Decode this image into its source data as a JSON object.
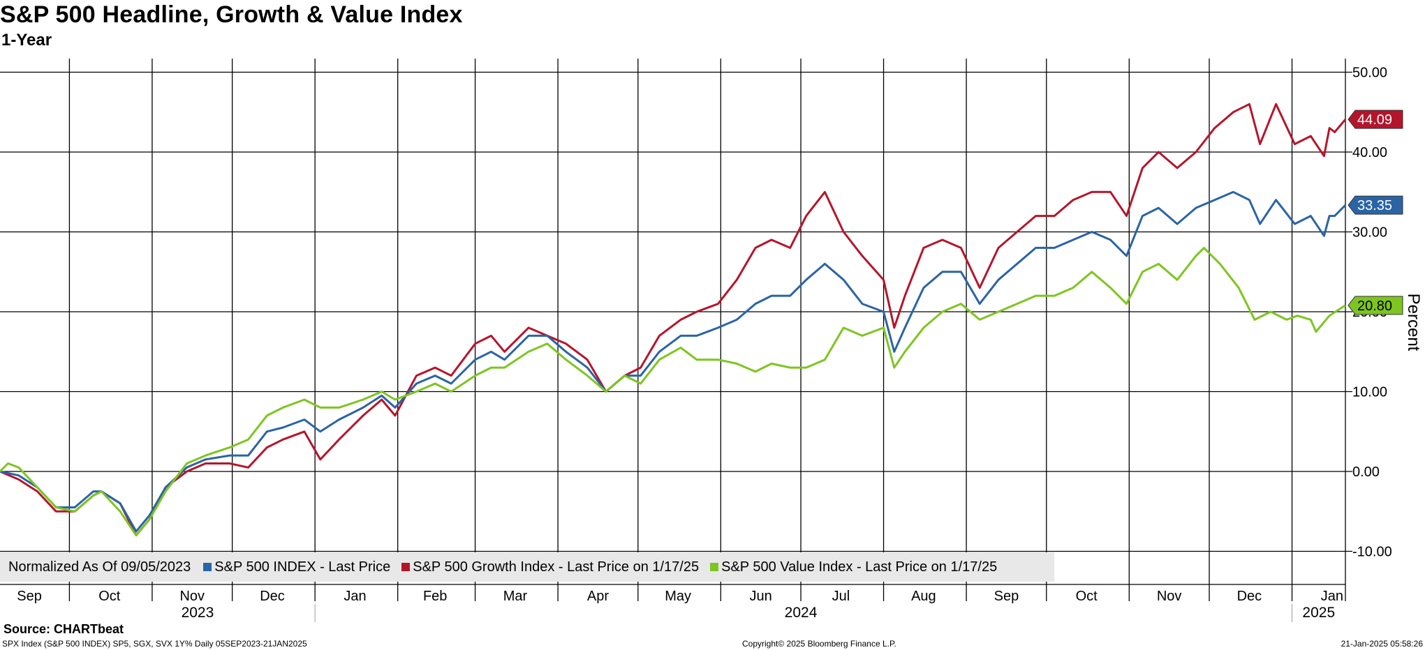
{
  "title": "S&P 500 Headline, Growth & Value Index",
  "subtitle": "1-Year",
  "chart_data": {
    "type": "line",
    "ylabel": "Percent",
    "ylim": [
      -14,
      52
    ],
    "y_ticks": [
      -10,
      0,
      10,
      20,
      30,
      40,
      50
    ],
    "y_tick_labels": [
      "-10.00",
      "0.00",
      "10.00",
      "20.00",
      "30.00",
      "40.00",
      "50.00"
    ],
    "x_range": [
      "2023-09-05",
      "2025-01-21"
    ],
    "month_labels": [
      {
        "label": "Sep",
        "date": "2023-09-16"
      },
      {
        "label": "Oct",
        "date": "2023-10-16"
      },
      {
        "label": "Nov",
        "date": "2023-11-16"
      },
      {
        "label": "Dec",
        "date": "2023-12-16"
      },
      {
        "label": "Jan",
        "date": "2024-01-16"
      },
      {
        "label": "Feb",
        "date": "2024-02-15"
      },
      {
        "label": "Mar",
        "date": "2024-03-16"
      },
      {
        "label": "Apr",
        "date": "2024-04-16"
      },
      {
        "label": "May",
        "date": "2024-05-16"
      },
      {
        "label": "Jun",
        "date": "2024-06-16"
      },
      {
        "label": "Jul",
        "date": "2024-07-16"
      },
      {
        "label": "Aug",
        "date": "2024-08-16"
      },
      {
        "label": "Sep",
        "date": "2024-09-16"
      },
      {
        "label": "Oct",
        "date": "2024-10-16"
      },
      {
        "label": "Nov",
        "date": "2024-11-16"
      },
      {
        "label": "Dec",
        "date": "2024-12-16"
      },
      {
        "label": "Jan",
        "date": "2025-01-16"
      }
    ],
    "month_gridlines": [
      "2023-10-01",
      "2023-11-01",
      "2023-12-01",
      "2024-01-01",
      "2024-02-01",
      "2024-03-01",
      "2024-04-01",
      "2024-05-01",
      "2024-06-01",
      "2024-07-01",
      "2024-08-01",
      "2024-09-01",
      "2024-10-01",
      "2024-11-01",
      "2024-12-01",
      "2025-01-01"
    ],
    "year_labels": [
      {
        "label": "2023",
        "date": "2023-11-18"
      },
      {
        "label": "2024",
        "date": "2024-07-01"
      },
      {
        "label": "2025",
        "date": "2025-01-11"
      }
    ],
    "year_dividers": [
      "2024-01-01",
      "2025-01-01"
    ],
    "series": [
      {
        "name": "S&P 500 Growth Index - Last Price on 1/17/25",
        "color": "#b5152b",
        "last_value": 44.09,
        "last_label": "44.09",
        "points": [
          [
            "2023-09-05",
            0
          ],
          [
            "2023-09-12",
            -1
          ],
          [
            "2023-09-19",
            -2.5
          ],
          [
            "2023-09-26",
            -5
          ],
          [
            "2023-10-03",
            -5
          ],
          [
            "2023-10-10",
            -3
          ],
          [
            "2023-10-13",
            -2.5
          ],
          [
            "2023-10-20",
            -4
          ],
          [
            "2023-10-26",
            -8
          ],
          [
            "2023-10-31",
            -6
          ],
          [
            "2023-11-06",
            -2
          ],
          [
            "2023-11-14",
            0
          ],
          [
            "2023-11-21",
            1
          ],
          [
            "2023-11-30",
            1
          ],
          [
            "2023-12-07",
            0.5
          ],
          [
            "2023-12-14",
            3
          ],
          [
            "2023-12-20",
            4
          ],
          [
            "2023-12-28",
            5
          ],
          [
            "2024-01-03",
            1.5
          ],
          [
            "2024-01-10",
            4
          ],
          [
            "2024-01-19",
            7
          ],
          [
            "2024-01-26",
            9
          ],
          [
            "2024-01-31",
            7
          ],
          [
            "2024-02-08",
            12
          ],
          [
            "2024-02-15",
            13
          ],
          [
            "2024-02-21",
            12
          ],
          [
            "2024-03-01",
            16
          ],
          [
            "2024-03-07",
            17
          ],
          [
            "2024-03-12",
            15
          ],
          [
            "2024-03-21",
            18
          ],
          [
            "2024-03-28",
            17
          ],
          [
            "2024-04-04",
            16
          ],
          [
            "2024-04-12",
            14
          ],
          [
            "2024-04-19",
            10
          ],
          [
            "2024-04-26",
            12
          ],
          [
            "2024-05-02",
            13
          ],
          [
            "2024-05-09",
            17
          ],
          [
            "2024-05-17",
            19
          ],
          [
            "2024-05-23",
            20
          ],
          [
            "2024-05-31",
            21
          ],
          [
            "2024-06-07",
            24
          ],
          [
            "2024-06-14",
            28
          ],
          [
            "2024-06-20",
            29
          ],
          [
            "2024-06-27",
            28
          ],
          [
            "2024-07-03",
            32
          ],
          [
            "2024-07-10",
            35
          ],
          [
            "2024-07-17",
            30
          ],
          [
            "2024-07-24",
            27
          ],
          [
            "2024-08-01",
            24
          ],
          [
            "2024-08-05",
            18
          ],
          [
            "2024-08-09",
            22
          ],
          [
            "2024-08-16",
            28
          ],
          [
            "2024-08-23",
            29
          ],
          [
            "2024-08-30",
            28
          ],
          [
            "2024-09-06",
            23
          ],
          [
            "2024-09-13",
            28
          ],
          [
            "2024-09-20",
            30
          ],
          [
            "2024-09-27",
            32
          ],
          [
            "2024-10-04",
            32
          ],
          [
            "2024-10-11",
            34
          ],
          [
            "2024-10-18",
            35
          ],
          [
            "2024-10-25",
            35
          ],
          [
            "2024-10-31",
            32
          ],
          [
            "2024-11-06",
            38
          ],
          [
            "2024-11-12",
            40
          ],
          [
            "2024-11-19",
            38
          ],
          [
            "2024-11-26",
            40
          ],
          [
            "2024-12-03",
            43
          ],
          [
            "2024-12-10",
            45
          ],
          [
            "2024-12-16",
            46
          ],
          [
            "2024-12-20",
            41
          ],
          [
            "2024-12-26",
            46
          ],
          [
            "2025-01-02",
            41
          ],
          [
            "2025-01-08",
            42
          ],
          [
            "2025-01-13",
            39.5
          ],
          [
            "2025-01-15",
            43
          ],
          [
            "2025-01-17",
            42.5
          ],
          [
            "2025-01-21",
            44.09
          ]
        ]
      },
      {
        "name": "S&P 500 INDEX - Last Price",
        "color": "#2a64a5",
        "last_value": 33.35,
        "last_label": "33.35",
        "points": [
          [
            "2023-09-05",
            0
          ],
          [
            "2023-09-12",
            -0.5
          ],
          [
            "2023-09-19",
            -2
          ],
          [
            "2023-09-26",
            -4.5
          ],
          [
            "2023-10-03",
            -4.5
          ],
          [
            "2023-10-10",
            -2.5
          ],
          [
            "2023-10-13",
            -2.5
          ],
          [
            "2023-10-20",
            -4
          ],
          [
            "2023-10-26",
            -7.5
          ],
          [
            "2023-10-31",
            -5.5
          ],
          [
            "2023-11-06",
            -2
          ],
          [
            "2023-11-14",
            0.5
          ],
          [
            "2023-11-21",
            1.5
          ],
          [
            "2023-11-30",
            2
          ],
          [
            "2023-12-07",
            2
          ],
          [
            "2023-12-14",
            5
          ],
          [
            "2023-12-20",
            5.5
          ],
          [
            "2023-12-28",
            6.5
          ],
          [
            "2024-01-03",
            5
          ],
          [
            "2024-01-10",
            6.5
          ],
          [
            "2024-01-19",
            8
          ],
          [
            "2024-01-26",
            9.5
          ],
          [
            "2024-01-31",
            8
          ],
          [
            "2024-02-08",
            11
          ],
          [
            "2024-02-15",
            12
          ],
          [
            "2024-02-21",
            11
          ],
          [
            "2024-03-01",
            14
          ],
          [
            "2024-03-07",
            15
          ],
          [
            "2024-03-12",
            14
          ],
          [
            "2024-03-21",
            17
          ],
          [
            "2024-03-28",
            17
          ],
          [
            "2024-04-04",
            15
          ],
          [
            "2024-04-12",
            13
          ],
          [
            "2024-04-19",
            10
          ],
          [
            "2024-04-26",
            12
          ],
          [
            "2024-05-02",
            12
          ],
          [
            "2024-05-09",
            15
          ],
          [
            "2024-05-17",
            17
          ],
          [
            "2024-05-23",
            17
          ],
          [
            "2024-05-31",
            18
          ],
          [
            "2024-06-07",
            19
          ],
          [
            "2024-06-14",
            21
          ],
          [
            "2024-06-20",
            22
          ],
          [
            "2024-06-27",
            22
          ],
          [
            "2024-07-03",
            24
          ],
          [
            "2024-07-10",
            26
          ],
          [
            "2024-07-17",
            24
          ],
          [
            "2024-07-24",
            21
          ],
          [
            "2024-08-01",
            20
          ],
          [
            "2024-08-05",
            15
          ],
          [
            "2024-08-09",
            18
          ],
          [
            "2024-08-16",
            23
          ],
          [
            "2024-08-23",
            25
          ],
          [
            "2024-08-30",
            25
          ],
          [
            "2024-09-06",
            21
          ],
          [
            "2024-09-13",
            24
          ],
          [
            "2024-09-20",
            26
          ],
          [
            "2024-09-27",
            28
          ],
          [
            "2024-10-04",
            28
          ],
          [
            "2024-10-11",
            29
          ],
          [
            "2024-10-18",
            30
          ],
          [
            "2024-10-25",
            29
          ],
          [
            "2024-10-31",
            27
          ],
          [
            "2024-11-06",
            32
          ],
          [
            "2024-11-12",
            33
          ],
          [
            "2024-11-19",
            31
          ],
          [
            "2024-11-26",
            33
          ],
          [
            "2024-12-03",
            34
          ],
          [
            "2024-12-10",
            35
          ],
          [
            "2024-12-16",
            34
          ],
          [
            "2024-12-20",
            31
          ],
          [
            "2024-12-26",
            34
          ],
          [
            "2025-01-02",
            31
          ],
          [
            "2025-01-08",
            32
          ],
          [
            "2025-01-13",
            29.5
          ],
          [
            "2025-01-15",
            32
          ],
          [
            "2025-01-17",
            32
          ],
          [
            "2025-01-21",
            33.35
          ]
        ]
      },
      {
        "name": "S&P 500 Value Index - Last Price on 1/17/25",
        "color": "#7ec51f",
        "last_value": 20.8,
        "last_label": "20.80",
        "points": [
          [
            "2023-09-05",
            0
          ],
          [
            "2023-09-08",
            1
          ],
          [
            "2023-09-12",
            0.5
          ],
          [
            "2023-09-19",
            -2
          ],
          [
            "2023-09-26",
            -4.5
          ],
          [
            "2023-10-03",
            -5
          ],
          [
            "2023-10-10",
            -3
          ],
          [
            "2023-10-13",
            -2.5
          ],
          [
            "2023-10-20",
            -5
          ],
          [
            "2023-10-26",
            -8
          ],
          [
            "2023-10-31",
            -6
          ],
          [
            "2023-11-06",
            -2.5
          ],
          [
            "2023-11-14",
            1
          ],
          [
            "2023-11-21",
            2
          ],
          [
            "2023-11-30",
            3
          ],
          [
            "2023-12-07",
            4
          ],
          [
            "2023-12-14",
            7
          ],
          [
            "2023-12-20",
            8
          ],
          [
            "2023-12-28",
            9
          ],
          [
            "2024-01-03",
            8
          ],
          [
            "2024-01-10",
            8
          ],
          [
            "2024-01-19",
            9
          ],
          [
            "2024-01-26",
            10
          ],
          [
            "2024-01-31",
            9
          ],
          [
            "2024-02-08",
            10
          ],
          [
            "2024-02-15",
            11
          ],
          [
            "2024-02-21",
            10
          ],
          [
            "2024-03-01",
            12
          ],
          [
            "2024-03-07",
            13
          ],
          [
            "2024-03-12",
            13
          ],
          [
            "2024-03-21",
            15
          ],
          [
            "2024-03-28",
            16
          ],
          [
            "2024-04-04",
            14
          ],
          [
            "2024-04-12",
            12
          ],
          [
            "2024-04-19",
            10
          ],
          [
            "2024-04-26",
            12
          ],
          [
            "2024-05-02",
            11
          ],
          [
            "2024-05-09",
            14
          ],
          [
            "2024-05-17",
            15.5
          ],
          [
            "2024-05-23",
            14
          ],
          [
            "2024-05-31",
            14
          ],
          [
            "2024-06-07",
            13.5
          ],
          [
            "2024-06-14",
            12.5
          ],
          [
            "2024-06-20",
            13.5
          ],
          [
            "2024-06-27",
            13
          ],
          [
            "2024-07-03",
            13
          ],
          [
            "2024-07-10",
            14
          ],
          [
            "2024-07-17",
            18
          ],
          [
            "2024-07-24",
            17
          ],
          [
            "2024-08-01",
            18
          ],
          [
            "2024-08-05",
            13
          ],
          [
            "2024-08-09",
            15
          ],
          [
            "2024-08-16",
            18
          ],
          [
            "2024-08-23",
            20
          ],
          [
            "2024-08-30",
            21
          ],
          [
            "2024-09-06",
            19
          ],
          [
            "2024-09-13",
            20
          ],
          [
            "2024-09-20",
            21
          ],
          [
            "2024-09-27",
            22
          ],
          [
            "2024-10-04",
            22
          ],
          [
            "2024-10-11",
            23
          ],
          [
            "2024-10-18",
            25
          ],
          [
            "2024-10-25",
            23
          ],
          [
            "2024-10-31",
            21
          ],
          [
            "2024-11-06",
            25
          ],
          [
            "2024-11-12",
            26
          ],
          [
            "2024-11-19",
            24
          ],
          [
            "2024-11-26",
            27
          ],
          [
            "2024-11-29",
            28
          ],
          [
            "2024-12-05",
            26
          ],
          [
            "2024-12-12",
            23
          ],
          [
            "2024-12-18",
            19
          ],
          [
            "2024-12-24",
            20
          ],
          [
            "2024-12-30",
            19
          ],
          [
            "2025-01-03",
            19.5
          ],
          [
            "2025-01-08",
            19
          ],
          [
            "2025-01-10",
            17.5
          ],
          [
            "2025-01-15",
            19.5
          ],
          [
            "2025-01-21",
            20.8
          ]
        ]
      }
    ]
  },
  "legend": {
    "prefix": "Normalized As Of 09/05/2023",
    "items": [
      {
        "label": "S&P 500 INDEX - Last Price",
        "color": "#2a64a5"
      },
      {
        "label": "S&P 500 Growth Index - Last Price on 1/17/25",
        "color": "#b5152b"
      },
      {
        "label": "S&P 500 Value Index - Last Price on 1/17/25",
        "color": "#7ec51f"
      }
    ]
  },
  "source": "Source: CHARTbeat",
  "footer": {
    "left": "SPX Index (S&P 500 INDEX) SP5, SGX, SVX 1Y%  Daily 05SEP2023-21JAN2025",
    "center": "Copyright© 2025 Bloomberg Finance L.P.",
    "right": "21-Jan-2025 05:58:26"
  }
}
